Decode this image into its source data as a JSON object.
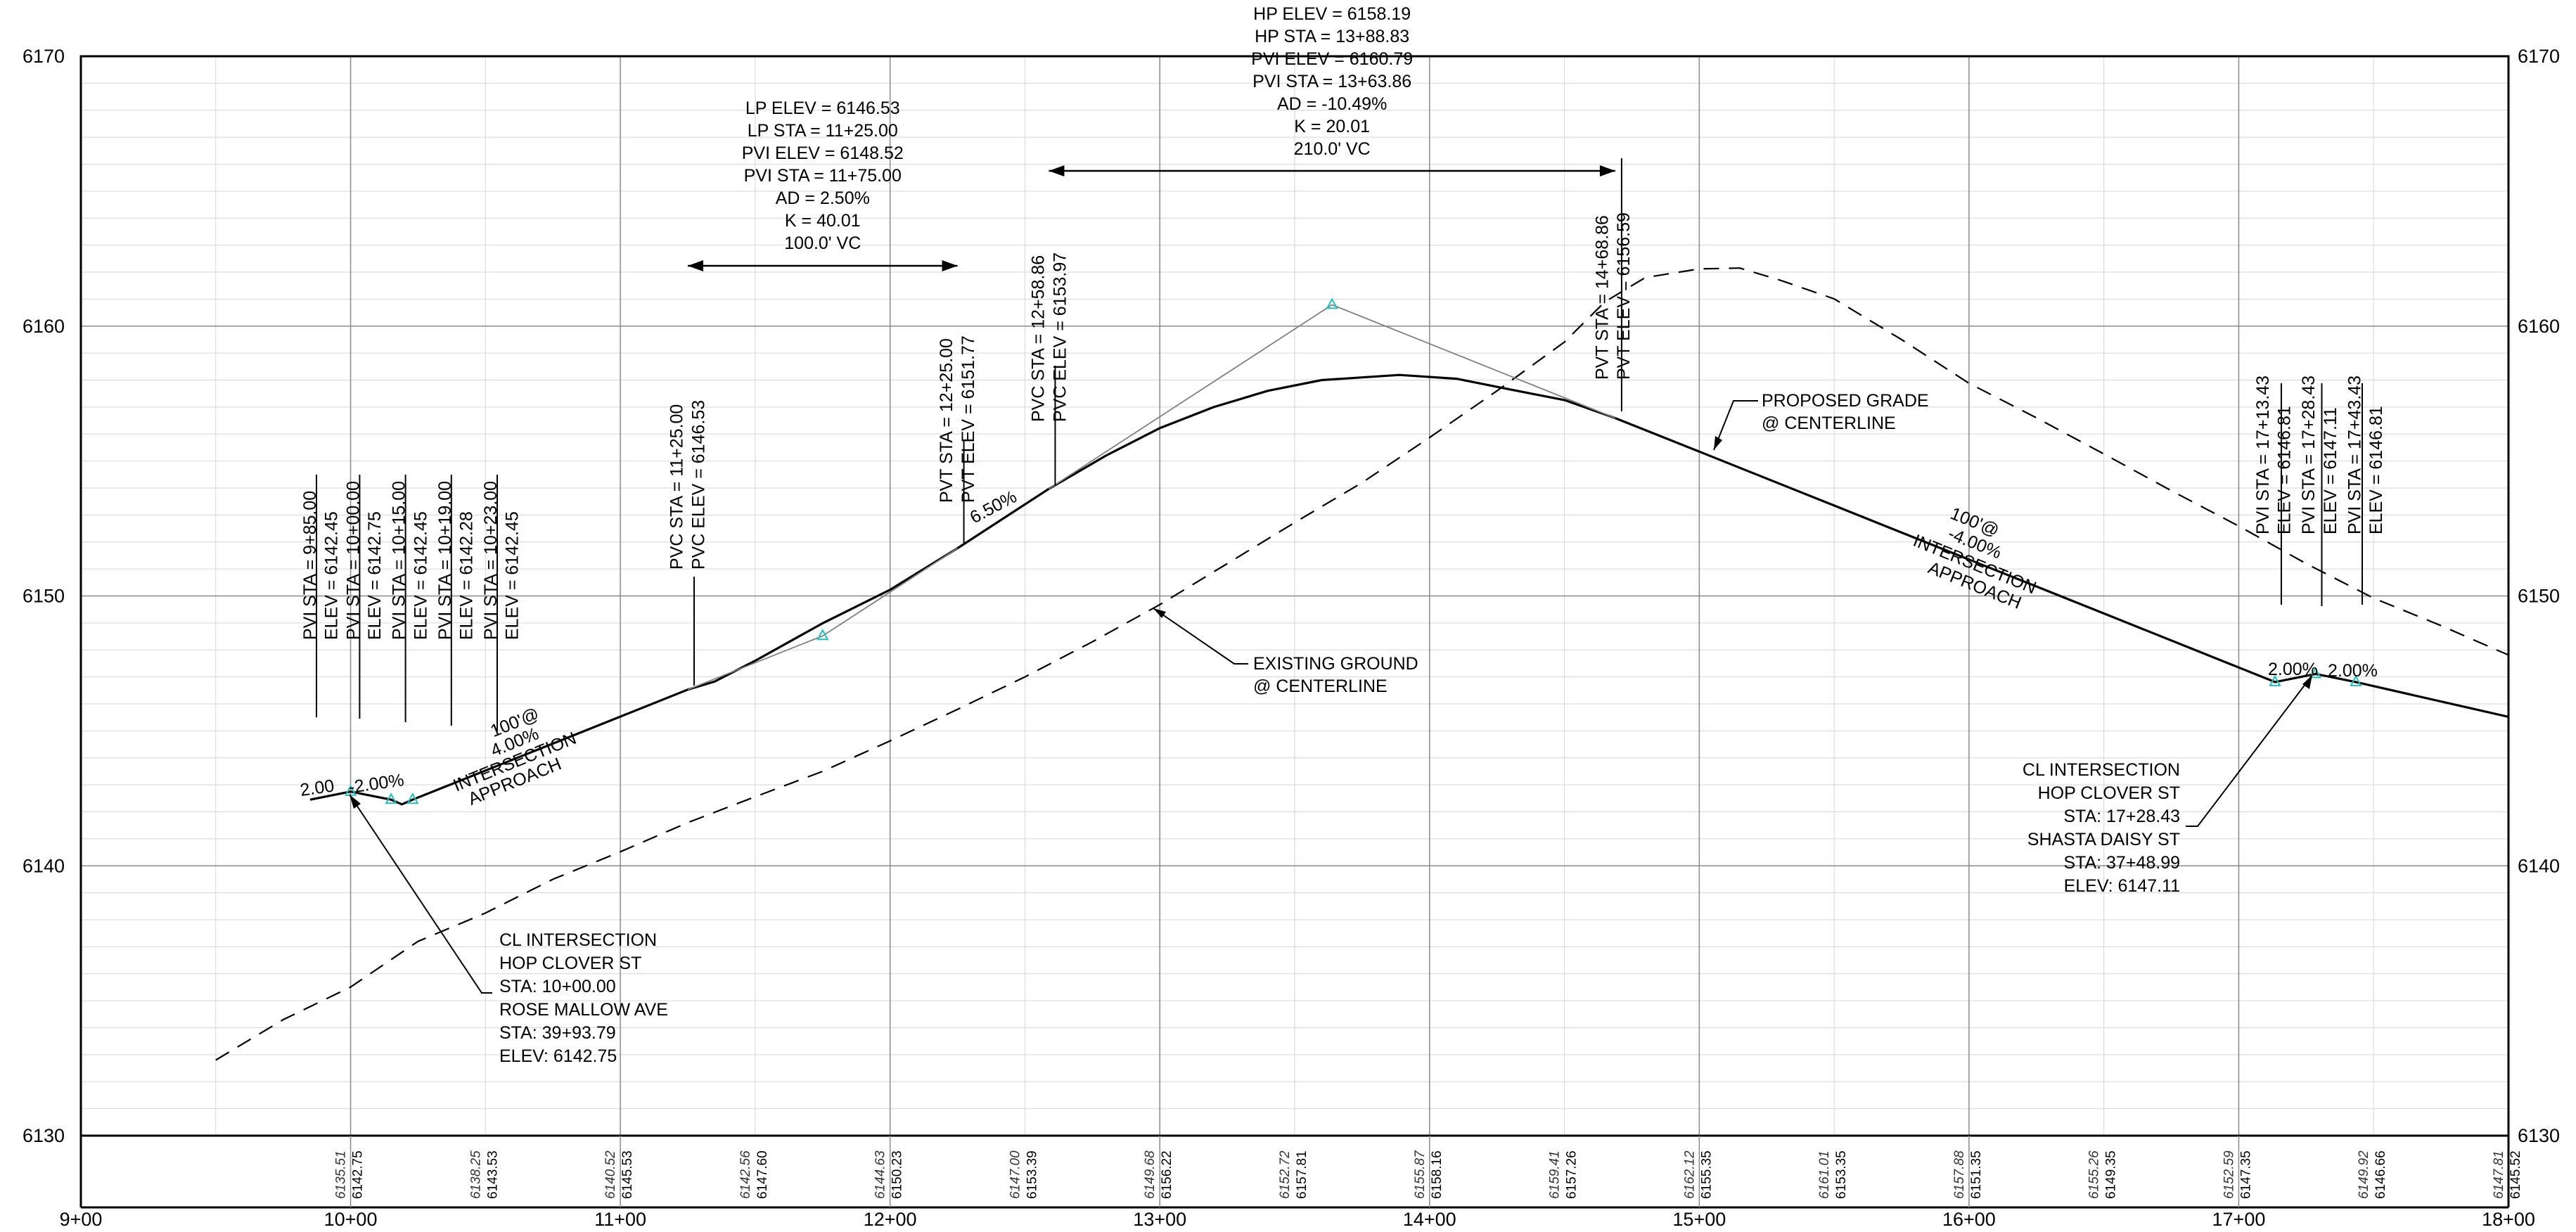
{
  "chart_data": {
    "type": "line",
    "title": "",
    "xlabel": "",
    "ylabel": "",
    "xlim": [
      900,
      1800
    ],
    "ylim": [
      6130,
      6170
    ],
    "grid": true,
    "elev_ticks": [
      "6130",
      "6140",
      "6150",
      "6160",
      "6170"
    ],
    "station_ticks": [
      {
        "x": 900,
        "label": "9+00"
      },
      {
        "x": 1000,
        "label": "10+00"
      },
      {
        "x": 1100,
        "label": "11+00"
      },
      {
        "x": 1200,
        "label": "12+00"
      },
      {
        "x": 1300,
        "label": "13+00"
      },
      {
        "x": 1400,
        "label": "14+00"
      },
      {
        "x": 1500,
        "label": "15+00"
      },
      {
        "x": 1600,
        "label": "16+00"
      },
      {
        "x": 1700,
        "label": "17+00"
      },
      {
        "x": 1800,
        "label": "18+00"
      }
    ],
    "bottom_values": [
      {
        "x": 1000,
        "existing": "6135.51",
        "proposed": "6142.75"
      },
      {
        "x": 1050,
        "existing": "6138.25",
        "proposed": "6143.53"
      },
      {
        "x": 1100,
        "existing": "6140.52",
        "proposed": "6145.53"
      },
      {
        "x": 1150,
        "existing": "6142.56",
        "proposed": "6147.60"
      },
      {
        "x": 1200,
        "existing": "6144.63",
        "proposed": "6150.23"
      },
      {
        "x": 1250,
        "existing": "6147.00",
        "proposed": "6153.39"
      },
      {
        "x": 1300,
        "existing": "6149.68",
        "proposed": "6156.22"
      },
      {
        "x": 1350,
        "existing": "6152.72",
        "proposed": "6157.81"
      },
      {
        "x": 1400,
        "existing": "6155.87",
        "proposed": "6158.16"
      },
      {
        "x": 1450,
        "existing": "6159.41",
        "proposed": "6157.26"
      },
      {
        "x": 1500,
        "existing": "6162.12",
        "proposed": "6155.35"
      },
      {
        "x": 1550,
        "existing": "6161.01",
        "proposed": "6153.35"
      },
      {
        "x": 1600,
        "existing": "6157.88",
        "proposed": "6151.35"
      },
      {
        "x": 1650,
        "existing": "6155.26",
        "proposed": "6149.35"
      },
      {
        "x": 1700,
        "existing": "6152.59",
        "proposed": "6147.35"
      },
      {
        "x": 1750,
        "existing": "6149.92",
        "proposed": "6146.66"
      },
      {
        "x": 1800,
        "existing": "6147.81",
        "proposed": "6145.52"
      }
    ],
    "series": [
      {
        "name": "PROPOSED GRADE @ CENTERLINE",
        "color": "#000000",
        "style": "solid",
        "points": [
          [
            985,
            6142.45
          ],
          [
            1000,
            6142.75
          ],
          [
            1015,
            6142.45
          ],
          [
            1019,
            6142.28
          ],
          [
            1023,
            6142.45
          ],
          [
            1125,
            6146.53
          ],
          [
            1135,
            6146.83
          ],
          [
            1150,
            6147.6
          ],
          [
            1175,
            6148.99
          ],
          [
            1200,
            6150.23
          ],
          [
            1225,
            6151.77
          ],
          [
            1258.86,
            6153.97
          ],
          [
            1280,
            6155.2
          ],
          [
            1300,
            6156.22
          ],
          [
            1320,
            6157.0
          ],
          [
            1340,
            6157.6
          ],
          [
            1360,
            6158.0
          ],
          [
            1388.83,
            6158.19
          ],
          [
            1410,
            6158.05
          ],
          [
            1430,
            6157.65
          ],
          [
            1450,
            6157.26
          ],
          [
            1468.86,
            6156.59
          ],
          [
            1500,
            6155.35
          ],
          [
            1550,
            6153.35
          ],
          [
            1600,
            6151.35
          ],
          [
            1650,
            6149.35
          ],
          [
            1700,
            6147.35
          ],
          [
            1713.43,
            6146.81
          ],
          [
            1728.43,
            6147.11
          ],
          [
            1743.43,
            6146.81
          ],
          [
            1750,
            6146.66
          ],
          [
            1800,
            6145.52
          ]
        ]
      },
      {
        "name": "EXISTING GROUND @ CENTERLINE",
        "color": "#000000",
        "style": "dashed",
        "points": [
          [
            950,
            6132.8
          ],
          [
            975,
            6134.3
          ],
          [
            1000,
            6135.51
          ],
          [
            1025,
            6137.2
          ],
          [
            1050,
            6138.25
          ],
          [
            1075,
            6139.5
          ],
          [
            1100,
            6140.52
          ],
          [
            1125,
            6141.6
          ],
          [
            1150,
            6142.56
          ],
          [
            1175,
            6143.5
          ],
          [
            1200,
            6144.63
          ],
          [
            1225,
            6145.8
          ],
          [
            1250,
            6147.0
          ],
          [
            1275,
            6148.3
          ],
          [
            1300,
            6149.68
          ],
          [
            1325,
            6151.2
          ],
          [
            1350,
            6152.72
          ],
          [
            1375,
            6154.2
          ],
          [
            1400,
            6155.87
          ],
          [
            1425,
            6157.6
          ],
          [
            1450,
            6159.41
          ],
          [
            1465,
            6160.9
          ],
          [
            1480,
            6161.8
          ],
          [
            1500,
            6162.12
          ],
          [
            1515,
            6162.15
          ],
          [
            1530,
            6161.7
          ],
          [
            1550,
            6161.01
          ],
          [
            1575,
            6159.5
          ],
          [
            1600,
            6157.88
          ],
          [
            1625,
            6156.6
          ],
          [
            1650,
            6155.26
          ],
          [
            1675,
            6153.9
          ],
          [
            1700,
            6152.59
          ],
          [
            1725,
            6151.2
          ],
          [
            1750,
            6149.92
          ],
          [
            1775,
            6148.9
          ],
          [
            1800,
            6147.81
          ]
        ]
      },
      {
        "name": "PVI tangents",
        "color": "#808080",
        "style": "thin",
        "points": [
          [
            1125,
            6146.53
          ],
          [
            1175,
            6148.52
          ],
          [
            1225,
            6151.77
          ]
        ]
      },
      {
        "name": "PVI tangents 2",
        "color": "#808080",
        "style": "thin",
        "points": [
          [
            1258.86,
            6153.97
          ],
          [
            1363.86,
            6160.79
          ],
          [
            1468.86,
            6156.59
          ]
        ]
      }
    ],
    "pvi_markers": [
      [
        1000,
        6142.75
      ],
      [
        1015,
        6142.45
      ],
      [
        1023,
        6142.45
      ],
      [
        1175,
        6148.52
      ],
      [
        1363.86,
        6160.79
      ],
      [
        1713.43,
        6146.81
      ],
      [
        1728.43,
        6147.11
      ],
      [
        1743.43,
        6146.81
      ]
    ],
    "vertical_labels": [
      {
        "x": 985,
        "text": "PVI STA = 9+85.00"
      },
      {
        "x": 993,
        "text": "ELEV = 6142.45"
      },
      {
        "x": 1001,
        "text": "PVI STA = 10+00.00"
      },
      {
        "x": 1009,
        "text": "ELEV = 6142.75"
      },
      {
        "x": 1018,
        "text": "PVI STA = 10+15.00"
      },
      {
        "x": 1026,
        "text": "ELEV = 6142.45"
      },
      {
        "x": 1035,
        "text": "PVI STA = 10+19.00"
      },
      {
        "x": 1043,
        "text": "ELEV = 6142.28"
      },
      {
        "x": 1052,
        "text": "PVI STA = 10+23.00"
      },
      {
        "x": 1060,
        "text": "ELEV = 6142.45"
      },
      {
        "x": 1121,
        "text": "PVC STA = 11+25.00"
      },
      {
        "x": 1129,
        "text": "PVC ELEV = 6146.53"
      },
      {
        "x": 1221,
        "text": "PVT STA = 12+25.00"
      },
      {
        "x": 1229,
        "text": "PVT ELEV = 6151.77"
      },
      {
        "x": 1255,
        "text": "PVC STA = 12+58.86"
      },
      {
        "x": 1263,
        "text": "PVC ELEV = 6153.97"
      },
      {
        "x": 1464,
        "text": "PVT STA = 14+68.86"
      },
      {
        "x": 1472,
        "text": "PVT ELEV = 6156.59"
      },
      {
        "x": 1709,
        "text": "PVI STA = 17+13.43"
      },
      {
        "x": 1717,
        "text": "ELEV = 6146.81"
      },
      {
        "x": 1726,
        "text": "PVI STA = 17+28.43"
      },
      {
        "x": 1734,
        "text": "ELEV = 6147.11"
      },
      {
        "x": 1743,
        "text": "PVI STA = 17+43.43"
      },
      {
        "x": 1751,
        "text": "ELEV = 6146.81"
      }
    ],
    "curve_blocks": [
      {
        "lines": [
          "LP ELEV = 6146.53",
          "LP STA = 11+25.00",
          "PVI ELEV = 6148.52",
          "PVI STA = 11+75.00",
          "AD = 2.50%",
          "K = 40.01",
          "100.0' VC"
        ]
      },
      {
        "lines": [
          "HP ELEV = 6158.19",
          "HP STA = 13+88.83",
          "PVI ELEV = 6160.79",
          "PVI STA = 13+63.86",
          "AD = -10.49%",
          "K = 20.01",
          "210.0' VC"
        ]
      }
    ],
    "grade_labels": {
      "left_2pct": "2.00",
      "left_neg2pct": "-2.00%",
      "slope_650": "6.50%",
      "right_2pct": "2.00%",
      "right_neg2pct": "2.00%",
      "approach_left": [
        "100'@",
        "4.00%",
        "INTERSECTION",
        "APPROACH"
      ],
      "approach_right": [
        "100'@",
        "-4.00%",
        "INTERSECTION",
        "APPROACH"
      ]
    },
    "callouts": {
      "proposed": [
        "PROPOSED GRADE",
        "@ CENTERLINE"
      ],
      "existing": [
        "EXISTING GROUND",
        "@ CENTERLINE"
      ],
      "intersection_left": [
        "CL INTERSECTION",
        "HOP CLOVER ST",
        "STA: 10+00.00",
        "ROSE MALLOW AVE",
        "STA: 39+93.79",
        "ELEV: 6142.75"
      ],
      "intersection_right": [
        "CL INTERSECTION",
        "HOP CLOVER ST",
        "STA: 17+28.43",
        "SHASTA DAISY ST",
        "STA: 37+48.99",
        "ELEV: 6147.11"
      ]
    }
  }
}
